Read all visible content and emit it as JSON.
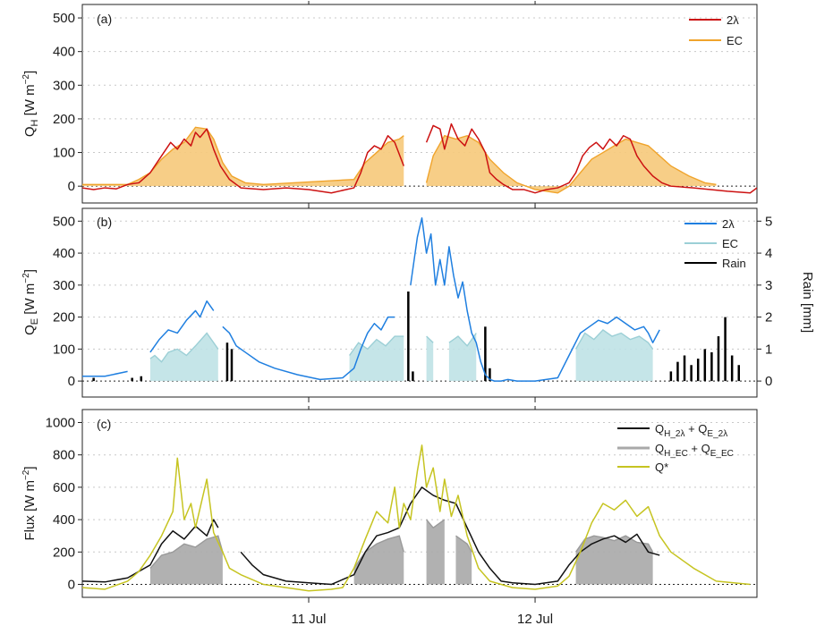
{
  "chart_data": [
    {
      "panel_label": "(a)",
      "type": "area",
      "ylim": [
        -50,
        540
      ],
      "yticks": [
        0,
        100,
        200,
        300,
        400,
        500
      ],
      "ylabel": {
        "main": "Q",
        "sub": "H",
        "unit_pre": " [W m",
        "unit_sup": "−2",
        "unit_post": "]"
      },
      "grid": true,
      "legend": "top-right",
      "colors": {
        "line": "#cc1111",
        "fill": "#f6c97a",
        "fill_line": "#f0a42c"
      },
      "series": [
        {
          "name": "2λ",
          "role": "line",
          "x": [
            0,
            0.05,
            0.1,
            0.15,
            0.2,
            0.25,
            0.3,
            0.33,
            0.36,
            0.39,
            0.42,
            0.45,
            0.48,
            0.5,
            0.52,
            0.55,
            0.58,
            0.61,
            0.65,
            0.7,
            0.8,
            0.9,
            1.0,
            1.1,
            1.2,
            1.23,
            1.26,
            1.29,
            1.32,
            1.35,
            1.38,
            1.42,
            1.45,
            1.5,
            1.52,
            1.55,
            1.58,
            1.6,
            1.63,
            1.66,
            1.69,
            1.72,
            1.75,
            1.78,
            1.8,
            1.83,
            1.86,
            1.9,
            1.95,
            2.0,
            2.05,
            2.1,
            2.15,
            2.18,
            2.21,
            2.24,
            2.27,
            2.3,
            2.33,
            2.36,
            2.39,
            2.42,
            2.45,
            2.48,
            2.52,
            2.56,
            2.6,
            2.7,
            2.85,
            2.95,
            2.98
          ],
          "y": [
            -5,
            -10,
            -5,
            -8,
            5,
            10,
            40,
            70,
            100,
            130,
            110,
            140,
            120,
            160,
            145,
            170,
            110,
            60,
            20,
            -5,
            -10,
            -5,
            -10,
            -20,
            -5,
            40,
            100,
            120,
            110,
            150,
            130,
            60,
            null,
            null,
            130,
            180,
            170,
            110,
            185,
            140,
            120,
            170,
            140,
            100,
            40,
            20,
            5,
            -10,
            -10,
            -20,
            -10,
            -5,
            10,
            40,
            90,
            115,
            130,
            110,
            140,
            120,
            150,
            140,
            90,
            60,
            30,
            10,
            0,
            -5,
            -15,
            -20,
            -5
          ]
        },
        {
          "name": "EC",
          "role": "area",
          "x": [
            0,
            0.1,
            0.2,
            0.25,
            0.3,
            0.35,
            0.4,
            0.45,
            0.5,
            0.55,
            0.58,
            0.62,
            0.66,
            0.72,
            0.8,
            1.2,
            1.25,
            1.3,
            1.35,
            1.4,
            1.42,
            1.48,
            1.52,
            1.55,
            1.6,
            1.65,
            1.7,
            1.75,
            1.8,
            1.86,
            1.92,
            2.0,
            2.1,
            2.15,
            2.2,
            2.25,
            2.3,
            2.35,
            2.4,
            2.45,
            2.5,
            2.55,
            2.6,
            2.68,
            2.75,
            2.8
          ],
          "y": [
            5,
            5,
            5,
            20,
            40,
            80,
            110,
            130,
            175,
            170,
            140,
            70,
            30,
            10,
            5,
            20,
            70,
            100,
            130,
            140,
            150,
            null,
            10,
            90,
            150,
            140,
            150,
            130,
            80,
            40,
            10,
            -10,
            -20,
            0,
            40,
            80,
            100,
            120,
            140,
            130,
            120,
            90,
            60,
            30,
            10,
            5
          ]
        }
      ]
    },
    {
      "panel_label": "(b)",
      "type": "area",
      "ylim": [
        -50,
        540
      ],
      "yticks": [
        0,
        100,
        200,
        300,
        400,
        500
      ],
      "ylabel": {
        "main": "Q",
        "sub": "E",
        "unit_pre": " [W m",
        "unit_sup": "−2",
        "unit_post": "]"
      },
      "y2label": "Rain [mm]",
      "y2lim": [
        -0.5,
        5.4
      ],
      "y2ticks": [
        0,
        1,
        2,
        3,
        4,
        5
      ],
      "grid": true,
      "legend": "top-right",
      "colors": {
        "line": "#1f7fe0",
        "fill": "#bfe2e6",
        "fill_line": "#9ccfd6",
        "rain": "#000000"
      },
      "series": [
        {
          "name": "2λ",
          "role": "line",
          "x": [
            0,
            0.1,
            0.2,
            0.22,
            0.3,
            0.34,
            0.38,
            0.42,
            0.46,
            0.5,
            0.52,
            0.55,
            0.58,
            0.6,
            0.62,
            0.65,
            0.68,
            0.72,
            0.78,
            0.85,
            0.95,
            1.05,
            1.15,
            1.2,
            1.23,
            1.26,
            1.29,
            1.32,
            1.35,
            1.38,
            1.4,
            1.42,
            1.45,
            1.48,
            1.5,
            1.52,
            1.54,
            1.56,
            1.58,
            1.6,
            1.62,
            1.64,
            1.66,
            1.68,
            1.7,
            1.72,
            1.74,
            1.76,
            1.78,
            1.8,
            1.82,
            1.85,
            1.88,
            1.92,
            2.0,
            2.1,
            2.15,
            2.2,
            2.24,
            2.28,
            2.32,
            2.36,
            2.4,
            2.44,
            2.48,
            2.5,
            2.52,
            2.55
          ],
          "y": [
            15,
            15,
            30,
            null,
            90,
            130,
            160,
            150,
            190,
            220,
            200,
            250,
            220,
            null,
            170,
            150,
            110,
            90,
            60,
            40,
            20,
            5,
            10,
            40,
            100,
            150,
            180,
            160,
            200,
            200,
            null,
            null,
            300,
            450,
            510,
            400,
            460,
            300,
            380,
            300,
            420,
            330,
            260,
            310,
            220,
            150,
            120,
            60,
            20,
            5,
            0,
            0,
            5,
            0,
            0,
            10,
            80,
            150,
            170,
            190,
            180,
            200,
            180,
            160,
            170,
            150,
            120,
            160
          ]
        },
        {
          "name": "EC",
          "role": "area",
          "x": [
            0.3,
            0.32,
            0.35,
            0.38,
            0.42,
            0.46,
            0.5,
            0.55,
            0.6,
            null,
            1.18,
            1.22,
            1.26,
            1.3,
            1.34,
            1.38,
            1.42,
            1.48,
            1.52,
            1.55,
            null,
            1.62,
            1.66,
            1.7,
            1.74,
            null,
            2.18,
            2.22,
            2.26,
            2.3,
            2.34,
            2.38,
            2.42,
            2.46,
            2.5,
            2.52
          ],
          "y": [
            70,
            80,
            60,
            90,
            100,
            80,
            110,
            150,
            100,
            null,
            80,
            120,
            100,
            130,
            110,
            140,
            140,
            null,
            140,
            120,
            null,
            120,
            140,
            110,
            150,
            null,
            100,
            150,
            130,
            160,
            140,
            150,
            130,
            140,
            120,
            100
          ]
        },
        {
          "name": "Rain",
          "role": "bar",
          "units": "mm",
          "x": [
            0.05,
            0.22,
            0.26,
            0.64,
            0.66,
            1.44,
            1.46,
            1.78,
            1.8,
            2.6,
            2.63,
            2.66,
            2.69,
            2.72,
            2.75,
            2.78,
            2.81,
            2.84,
            2.87,
            2.9
          ],
          "y": [
            0.1,
            0.1,
            0.15,
            1.2,
            1.0,
            2.8,
            0.3,
            1.7,
            0.4,
            0.3,
            0.6,
            0.8,
            0.5,
            0.7,
            1.0,
            0.9,
            1.4,
            2.0,
            0.8,
            0.5
          ]
        }
      ]
    },
    {
      "panel_label": "(c)",
      "type": "area",
      "ylim": [
        -80,
        1080
      ],
      "yticks": [
        0,
        200,
        400,
        600,
        800,
        1000
      ],
      "ylabel": {
        "main": "Flux",
        "unit_pre": " [W m",
        "unit_sup": "−2",
        "unit_post": "]"
      },
      "grid": true,
      "legend": "top-right",
      "colors": {
        "black": "#111111",
        "grey_fill": "#a9a9a9",
        "grey_line": "#9a9a9a",
        "yellow": "#c6c421"
      },
      "legend_entries": [
        {
          "parts": [
            [
              "Q",
              ""
            ],
            [
              "H_2λ",
              "sub"
            ],
            [
              " + Q",
              ""
            ],
            [
              "E_2λ",
              "sub"
            ]
          ]
        },
        {
          "parts": [
            [
              "Q",
              ""
            ],
            [
              "H_EC",
              "sub"
            ],
            [
              " + Q",
              ""
            ],
            [
              "E_EC",
              "sub"
            ]
          ]
        },
        {
          "parts": [
            [
              "Q*",
              ""
            ]
          ]
        }
      ],
      "series": [
        {
          "name": "Q_H_2λ + Q_E_2λ",
          "role": "line",
          "x": [
            0,
            0.1,
            0.2,
            0.3,
            0.35,
            0.4,
            0.45,
            0.5,
            0.55,
            0.58,
            0.6,
            0.65,
            0.7,
            0.75,
            0.8,
            0.85,
            0.9,
            1.0,
            1.1,
            1.2,
            1.25,
            1.3,
            1.35,
            1.4,
            1.45,
            1.5,
            1.55,
            1.6,
            1.65,
            1.7,
            1.75,
            1.8,
            1.85,
            1.9,
            2.0,
            2.1,
            2.15,
            2.2,
            2.25,
            2.3,
            2.35,
            2.4,
            2.45,
            2.5,
            2.55
          ],
          "y": [
            20,
            15,
            40,
            120,
            250,
            330,
            280,
            360,
            300,
            400,
            350,
            null,
            200,
            120,
            60,
            40,
            20,
            10,
            0,
            60,
            200,
            300,
            320,
            350,
            500,
            600,
            550,
            520,
            500,
            350,
            200,
            100,
            20,
            10,
            0,
            20,
            120,
            200,
            250,
            280,
            300,
            260,
            310,
            200,
            180
          ]
        },
        {
          "name": "Q_H_EC + Q_E_EC",
          "role": "area",
          "x": [
            0.3,
            0.35,
            0.4,
            0.45,
            0.5,
            0.55,
            0.6,
            0.62,
            null,
            1.2,
            1.25,
            1.3,
            1.35,
            1.4,
            1.42,
            null,
            1.52,
            1.55,
            1.6,
            null,
            1.65,
            1.7,
            1.72,
            null,
            2.18,
            2.22,
            2.26,
            2.3,
            2.35,
            2.4,
            2.45,
            2.5,
            2.52
          ],
          "y": [
            100,
            180,
            200,
            250,
            230,
            280,
            300,
            200,
            null,
            100,
            200,
            250,
            280,
            300,
            200,
            null,
            400,
            350,
            400,
            null,
            300,
            250,
            200,
            null,
            200,
            280,
            300,
            290,
            270,
            300,
            260,
            250,
            200
          ]
        },
        {
          "name": "Q*",
          "role": "line",
          "x": [
            0,
            0.1,
            0.2,
            0.25,
            0.3,
            0.35,
            0.4,
            0.42,
            0.45,
            0.48,
            0.5,
            0.55,
            0.58,
            0.62,
            0.65,
            0.7,
            0.8,
            0.9,
            1.0,
            1.1,
            1.15,
            1.2,
            1.25,
            1.3,
            1.35,
            1.38,
            1.4,
            1.42,
            1.45,
            1.48,
            1.5,
            1.52,
            1.55,
            1.58,
            1.6,
            1.63,
            1.66,
            1.7,
            1.75,
            1.8,
            1.85,
            1.9,
            2.0,
            2.1,
            2.15,
            2.2,
            2.25,
            2.3,
            2.35,
            2.4,
            2.45,
            2.5,
            2.55,
            2.6,
            2.7,
            2.8,
            2.95
          ],
          "y": [
            -20,
            -30,
            20,
            80,
            180,
            300,
            450,
            780,
            400,
            500,
            350,
            650,
            320,
            200,
            100,
            60,
            0,
            -20,
            -40,
            -30,
            -20,
            100,
            280,
            450,
            380,
            600,
            350,
            500,
            400,
            700,
            860,
            600,
            720,
            450,
            650,
            420,
            550,
            300,
            100,
            20,
            0,
            -20,
            -30,
            -10,
            50,
            200,
            380,
            500,
            460,
            520,
            420,
            480,
            300,
            200,
            100,
            20,
            0
          ]
        }
      ]
    }
  ],
  "x_axis": {
    "tick_labels": [
      "11 Jul",
      "12 Jul"
    ],
    "tick_x": [
      1,
      2
    ],
    "xlim": [
      0,
      2.98
    ]
  }
}
